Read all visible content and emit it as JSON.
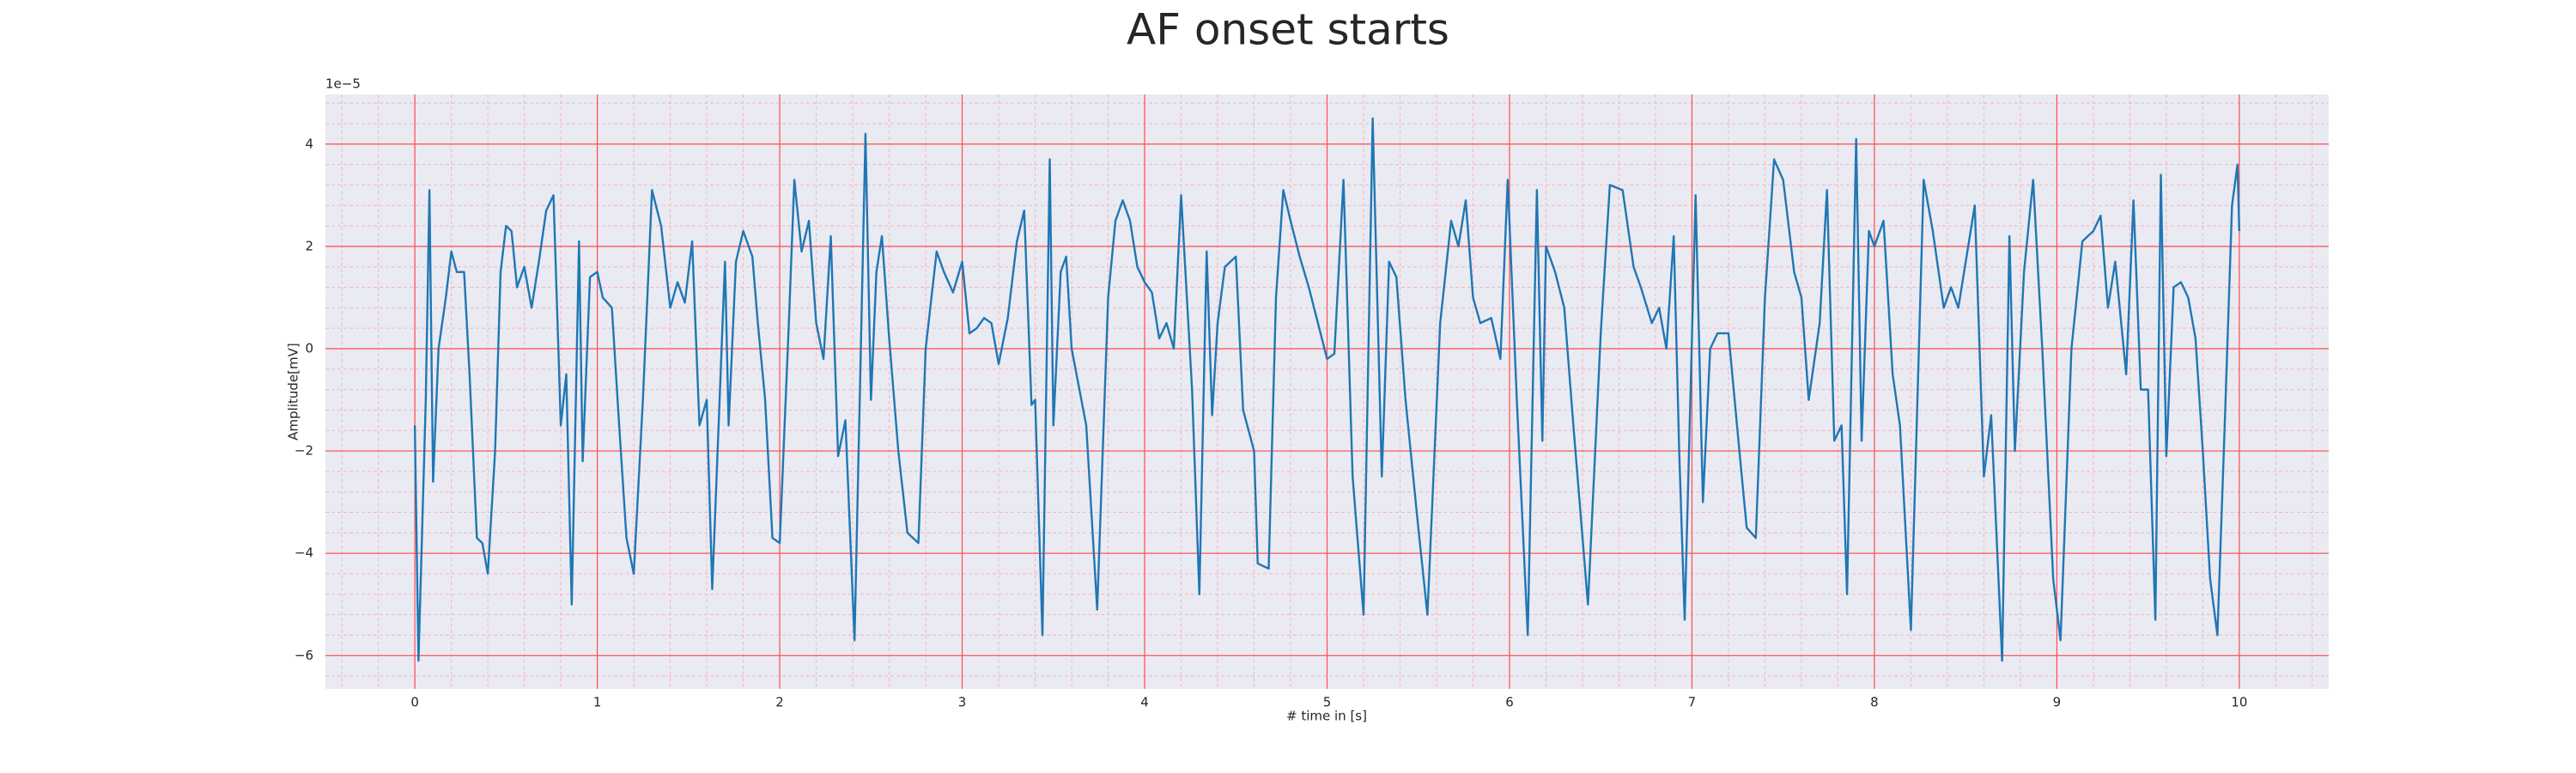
{
  "chart_data": {
    "type": "line",
    "title": "AF onset starts",
    "xlabel": "# time in [s]",
    "ylabel": "Amplitude[mV]",
    "offset_label": "1e−5",
    "xlim": [
      -0.49,
      10.49
    ],
    "ylim": [
      -6.65,
      4.97
    ],
    "xticks": [
      0,
      1,
      2,
      3,
      4,
      5,
      6,
      7,
      8,
      9,
      10
    ],
    "yticks": [
      {
        "value": -6,
        "label": "−6"
      },
      {
        "value": -4,
        "label": "−4"
      },
      {
        "value": -2,
        "label": "−2"
      },
      0,
      2,
      4
    ],
    "grid": true,
    "minor_grid": true,
    "grid_color": "#ff4d4d",
    "minor_grid_color": "#f4b6c2",
    "background": "#eaeaf2",
    "series": [
      {
        "color": "#1f77b4",
        "x": [
          0,
          0.02,
          0.06,
          0.08,
          0.1,
          0.13,
          0.17,
          0.2,
          0.23,
          0.27,
          0.3,
          0.34,
          0.37,
          0.4,
          0.44,
          0.47,
          0.5,
          0.53,
          0.56,
          0.6,
          0.64,
          0.68,
          0.72,
          0.76,
          0.8,
          0.83,
          0.86,
          0.9,
          0.92,
          0.96,
          1.0,
          1.03,
          1.08,
          1.12,
          1.16,
          1.2,
          1.25,
          1.3,
          1.35,
          1.4,
          1.44,
          1.48,
          1.52,
          1.56,
          1.6,
          1.63,
          1.7,
          1.72,
          1.76,
          1.8,
          1.85,
          1.88,
          1.92,
          1.96,
          2.0,
          2.05,
          2.08,
          2.12,
          2.16,
          2.2,
          2.24,
          2.28,
          2.32,
          2.36,
          2.41,
          2.47,
          2.5,
          2.53,
          2.56,
          2.6,
          2.65,
          2.7,
          2.76,
          2.8,
          2.86,
          2.9,
          2.95,
          3.0,
          3.04,
          3.08,
          3.12,
          3.16,
          3.2,
          3.25,
          3.3,
          3.34,
          3.38,
          3.4,
          3.44,
          3.48,
          3.5,
          3.54,
          3.57,
          3.6,
          3.68,
          3.74,
          3.8,
          3.84,
          3.88,
          3.92,
          3.96,
          4.0,
          4.04,
          4.08,
          4.12,
          4.16,
          4.2,
          4.26,
          4.3,
          4.34,
          4.37,
          4.4,
          4.44,
          4.5,
          4.54,
          4.6,
          4.62,
          4.68,
          4.72,
          4.76,
          4.8,
          4.85,
          4.9,
          4.95,
          5.0,
          5.04,
          5.09,
          5.14,
          5.2,
          5.25,
          5.3,
          5.34,
          5.38,
          5.43,
          5.5,
          5.55,
          5.62,
          5.68,
          5.72,
          5.76,
          5.8,
          5.84,
          5.9,
          5.95,
          5.99,
          6.04,
          6.1,
          6.15,
          6.18,
          6.2,
          6.25,
          6.3,
          6.35,
          6.43,
          6.5,
          6.55,
          6.62,
          6.68,
          6.72,
          6.78,
          6.82,
          6.86,
          6.9,
          6.93,
          6.96,
          7.02,
          7.06,
          7.1,
          7.14,
          7.2,
          7.26,
          7.3,
          7.35,
          7.4,
          7.45,
          7.5,
          7.56,
          7.6,
          7.64,
          7.7,
          7.74,
          7.78,
          7.82,
          7.85,
          7.9,
          7.93,
          7.97,
          8.0,
          8.05,
          8.1,
          8.14,
          8.2,
          8.27,
          8.32,
          8.38,
          8.42,
          8.46,
          8.55,
          8.6,
          8.64,
          8.7,
          8.74,
          8.77,
          8.82,
          8.87,
          8.92,
          8.98,
          9.02,
          9.08,
          9.14,
          9.2,
          9.24,
          9.28,
          9.32,
          9.38,
          9.42,
          9.46,
          9.5,
          9.54,
          9.57,
          9.6,
          9.64,
          9.68,
          9.72,
          9.76,
          9.8,
          9.84,
          9.88,
          9.92,
          9.96,
          9.99,
          10.0
        ],
        "values": [
          -1.5,
          -6.1,
          -1,
          3.1,
          -2.6,
          0,
          1,
          1.9,
          1.5,
          1.5,
          -0.5,
          -3.7,
          -3.8,
          -4.4,
          -2,
          1.5,
          2.4,
          2.3,
          1.2,
          1.6,
          0.8,
          1.7,
          2.7,
          3.0,
          -1.5,
          -0.5,
          -5.0,
          2.1,
          -2.2,
          1.4,
          1.5,
          1.0,
          0.8,
          -1.5,
          -3.7,
          -4.4,
          -1,
          3.1,
          2.4,
          0.8,
          1.3,
          0.9,
          2.1,
          -1.5,
          -1,
          -4.7,
          1.7,
          -1.5,
          1.7,
          2.3,
          1.8,
          0.5,
          -1,
          -3.7,
          -3.8,
          0.5,
          3.3,
          1.9,
          2.5,
          0.5,
          -0.2,
          2.2,
          -2.1,
          -1.4,
          -5.7,
          4.2,
          -1,
          1.5,
          2.2,
          0.2,
          -2,
          -3.6,
          -3.8,
          0,
          1.9,
          1.5,
          1.1,
          1.7,
          0.3,
          0.4,
          0.6,
          0.5,
          -0.3,
          0.6,
          2.1,
          2.7,
          -1.1,
          -1.0,
          -5.6,
          3.7,
          -1.5,
          1.5,
          1.8,
          0,
          -1.5,
          -5.1,
          1.0,
          2.5,
          2.9,
          2.5,
          1.6,
          1.3,
          1.1,
          0.2,
          0.5,
          0,
          3.0,
          -0.8,
          -4.8,
          1.9,
          -1.3,
          0.5,
          1.6,
          1.8,
          -1.2,
          -2,
          -4.2,
          -4.3,
          1.0,
          3.1,
          2.5,
          1.8,
          1.2,
          0.5,
          -0.2,
          -0.1,
          3.3,
          -2.5,
          -5.2,
          4.5,
          -2.5,
          1.7,
          1.4,
          -1.0,
          -3.5,
          -5.2,
          0.5,
          2.5,
          2.0,
          2.9,
          1.0,
          0.5,
          0.6,
          -0.2,
          3.3,
          -1,
          -5.6,
          3.1,
          -1.8,
          2.0,
          1.5,
          0.8,
          -1.5,
          -5.0,
          0.3,
          3.2,
          3.1,
          1.6,
          1.2,
          0.5,
          0.8,
          0.0,
          2.2,
          -2,
          -5.3,
          3.0,
          -3.0,
          0,
          0.3,
          0.3,
          -2,
          -3.5,
          -3.7,
          1.0,
          3.7,
          3.3,
          1.5,
          1.0,
          -1.0,
          0.5,
          3.1,
          -1.8,
          -1.5,
          -4.8,
          4.1,
          -1.8,
          2.3,
          2.0,
          2.5,
          -0.5,
          -1.5,
          -5.5,
          3.3,
          2.3,
          0.8,
          1.2,
          0.8,
          2.8,
          -2.5,
          -1.3,
          -6.1,
          2.2,
          -2.0,
          1.5,
          3.3,
          0,
          -4.5,
          -5.7,
          0,
          2.1,
          2.3,
          2.6,
          0.8,
          1.7,
          -0.5,
          2.9,
          -0.8,
          -0.8,
          -5.3,
          3.4,
          -2.1,
          1.2,
          1.3,
          1.0,
          0.2,
          -2.0,
          -4.5,
          -5.6,
          -1.5,
          2.8,
          3.6,
          2.3
        ]
      }
    ]
  }
}
